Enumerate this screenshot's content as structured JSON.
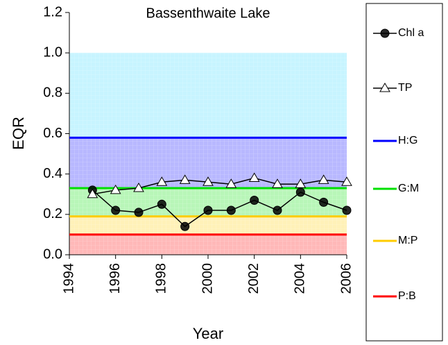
{
  "chart_data": {
    "type": "line",
    "title": "Bassenthwaite Lake",
    "x_label": "Year",
    "y_label": "EQR",
    "x": [
      1995,
      1996,
      1997,
      1998,
      1999,
      2000,
      2001,
      2002,
      2003,
      2004,
      2005,
      2006
    ],
    "series": [
      {
        "name": "Chl a",
        "color": "#000000",
        "marker": "circle",
        "values": [
          0.32,
          0.22,
          0.21,
          0.25,
          0.14,
          0.22,
          0.22,
          0.27,
          0.22,
          0.31,
          0.26,
          0.22
        ]
      },
      {
        "name": "TP",
        "color": "#000000",
        "marker": "triangle",
        "values": [
          0.3,
          0.32,
          0.33,
          0.36,
          0.37,
          0.36,
          0.35,
          0.38,
          0.35,
          0.35,
          0.37,
          0.36
        ]
      }
    ],
    "thresholds": [
      {
        "name": "H:G",
        "color": "#0000ff",
        "value": 0.58
      },
      {
        "name": "G:M",
        "color": "#00e000",
        "value": 0.33
      },
      {
        "name": "M:P",
        "color": "#ffcc00",
        "value": 0.19
      },
      {
        "name": "P:B",
        "color": "#ff0000",
        "value": 0.1
      }
    ],
    "band_top": 1.0,
    "band_top_color": "#00ccff",
    "xlim": [
      1994,
      2006
    ],
    "xticks": [
      1994,
      1996,
      1998,
      2000,
      2002,
      2004,
      2006
    ],
    "ylim": [
      0,
      1.2
    ],
    "yticks": [
      {
        "value": 0,
        "label": "0.0"
      },
      {
        "value": 0.2,
        "label": "0.2"
      },
      {
        "value": 0.4,
        "label": "0.4"
      },
      {
        "value": 0.6,
        "label": "0.6"
      },
      {
        "value": 0.8,
        "label": "0.8"
      },
      {
        "value": 1.0,
        "label": "1.0"
      },
      {
        "value": 1.2,
        "label": "1.2"
      }
    ]
  }
}
